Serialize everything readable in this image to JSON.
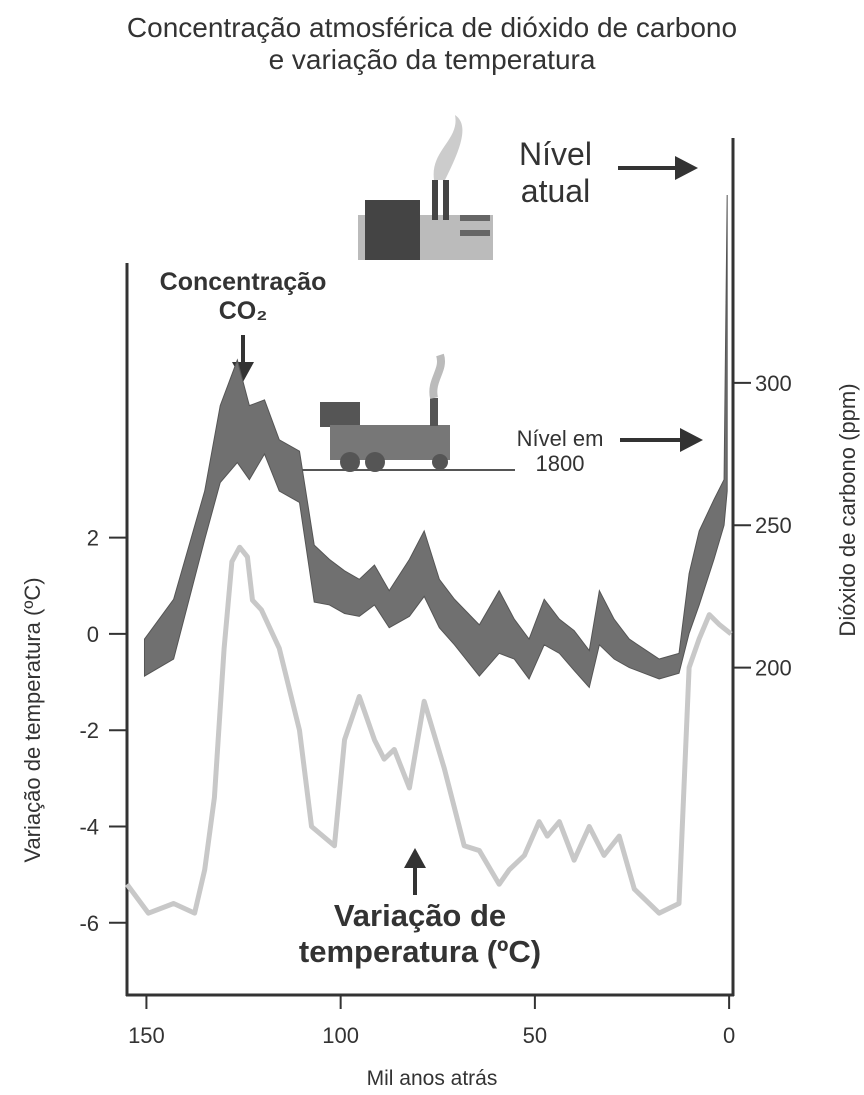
{
  "chart_data": {
    "type": "line",
    "title": [
      "Concentração  atmosférica de dióxido de carbono",
      "e variação da temperatura"
    ],
    "xlabel": "Mil anos atrás",
    "ylabel": "Variação de temperatura (ºC)",
    "y2label": "Dióxido de carbono  (ppm)",
    "xlim": [
      155,
      -1
    ],
    "xticks": [
      150,
      100,
      50,
      0
    ],
    "ylim": [
      -7.5,
      10.3
    ],
    "yticks": [
      -6,
      -4,
      -2,
      0,
      2
    ],
    "y2lim": [
      85,
      386
    ],
    "y2ticks": [
      200,
      250,
      300
    ],
    "annotations": [
      "Nível atual",
      "Nível em 1800"
    ],
    "series": [
      {
        "name": "Variação de temperatura (ºC)",
        "color": "#c8c8c8",
        "axis": "y",
        "x": [
          155,
          149.5,
          143,
          137.6,
          135,
          132.5,
          130,
          128,
          126,
          124,
          122.7,
          120.4,
          115.8,
          110.6,
          107.5,
          101.6,
          99,
          95.2,
          91.3,
          88.8,
          86.2,
          82.3,
          78.5,
          73.3,
          68.2,
          64.3,
          59.2,
          56.6,
          52.7,
          48.9,
          46.8,
          43.7,
          39.9,
          36,
          32.2,
          28.3,
          24.4,
          18,
          12.9,
          10.3,
          7.7,
          5.1,
          2.6,
          -0.5
        ],
        "values": [
          -5.2,
          -5.8,
          -5.6,
          -5.8,
          -4.9,
          -3.4,
          -0.3,
          1.5,
          1.8,
          1.6,
          0.7,
          0.5,
          -0.3,
          -2,
          -4,
          -4.4,
          -2.2,
          -1.3,
          -2.2,
          -2.6,
          -2.4,
          -3.2,
          -1.4,
          -2.8,
          -4.4,
          -4.5,
          -5.2,
          -4.9,
          -4.6,
          -3.9,
          -4.2,
          -3.9,
          -4.7,
          -4,
          -4.6,
          -4.2,
          -5.3,
          -5.8,
          -5.6,
          -0.7,
          -0.1,
          0.4,
          0.2,
          0
        ]
      },
      {
        "name": "Concentração CO₂",
        "color": "#707070",
        "axis": "y2",
        "x": [
          150.5,
          143,
          135,
          131,
          126.6,
          123.5,
          119.6,
          115.8,
          110.6,
          106.8,
          102.9,
          99,
          95.2,
          91.3,
          87.5,
          82.3,
          78.5,
          74.6,
          70.7,
          64.3,
          59.2,
          55.3,
          51.5,
          47.6,
          43.7,
          39.9,
          36,
          33.4,
          29.6,
          25.7,
          18,
          12.9,
          10.3,
          7.7,
          3.9,
          1.3,
          0.5
        ],
        "values": [
          210,
          224,
          262,
          292,
          308,
          292,
          294,
          280,
          276,
          243,
          238,
          234,
          231,
          236,
          227,
          238,
          248,
          231,
          224,
          215,
          227,
          217,
          210,
          224,
          217,
          213,
          206,
          227,
          217,
          210,
          203,
          205,
          233,
          248,
          259,
          266,
          366
        ],
        "values_low": [
          197,
          203,
          245,
          265,
          272,
          266,
          275,
          262,
          258,
          223,
          222,
          219,
          218,
          222,
          214,
          218,
          225,
          214,
          208,
          197,
          205,
          203,
          196,
          208,
          205,
          199,
          193,
          208,
          203,
          200,
          196,
          198,
          212,
          222,
          238,
          250,
          262
        ]
      }
    ]
  }
}
